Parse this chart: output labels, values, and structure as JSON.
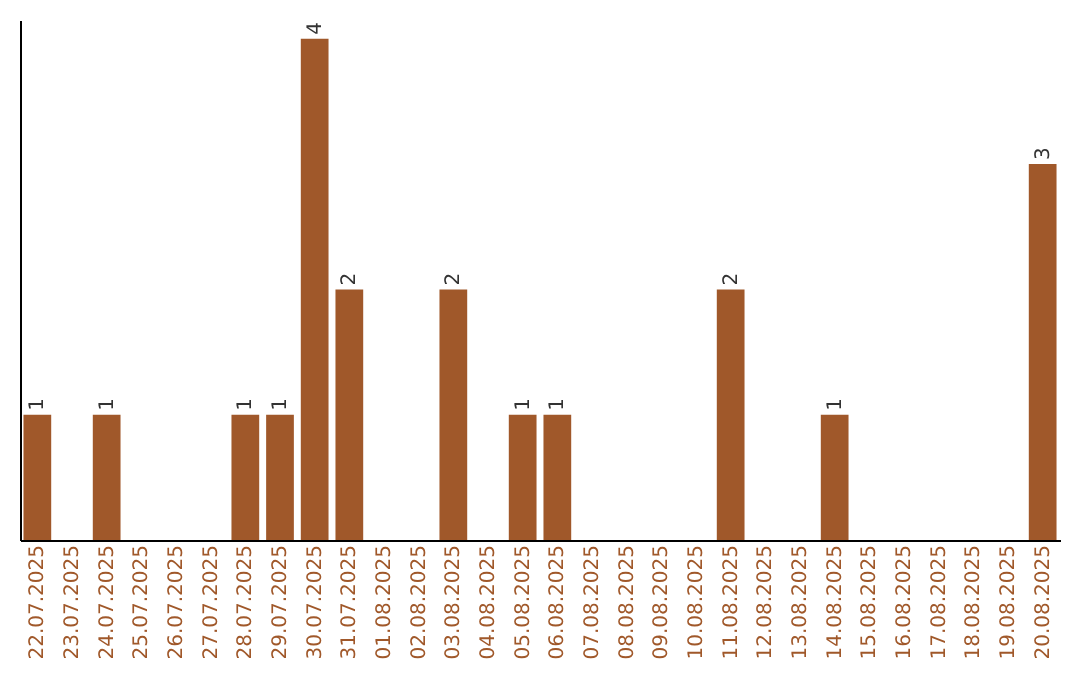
{
  "chart_data": {
    "type": "bar",
    "categories": [
      "22.07.2025",
      "23.07.2025",
      "24.07.2025",
      "25.07.2025",
      "26.07.2025",
      "27.07.2025",
      "28.07.2025",
      "29.07.2025",
      "30.07.2025",
      "31.07.2025",
      "01.08.2025",
      "02.08.2025",
      "03.08.2025",
      "04.08.2025",
      "05.08.2025",
      "06.08.2025",
      "07.08.2025",
      "08.08.2025",
      "09.08.2025",
      "10.08.2025",
      "11.08.2025",
      "12.08.2025",
      "13.08.2025",
      "14.08.2025",
      "15.08.2025",
      "16.08.2025",
      "17.08.2025",
      "18.08.2025",
      "19.08.2025",
      "20.08.2025"
    ],
    "values": [
      1,
      0,
      1,
      0,
      0,
      0,
      1,
      1,
      4,
      2,
      0,
      0,
      2,
      0,
      1,
      1,
      0,
      0,
      0,
      0,
      2,
      0,
      0,
      1,
      0,
      0,
      0,
      0,
      0,
      3
    ],
    "value_labels": [
      "1",
      null,
      "1",
      null,
      null,
      null,
      "1",
      "1",
      "4",
      "2",
      null,
      null,
      "2",
      null,
      "1",
      "1",
      null,
      null,
      null,
      null,
      "2",
      null,
      null,
      "1",
      null,
      null,
      null,
      null,
      null,
      "3"
    ],
    "color": "#a0582a",
    "ylim": [
      0,
      4.15
    ],
    "tick_labels": "x",
    "grid": false
  }
}
